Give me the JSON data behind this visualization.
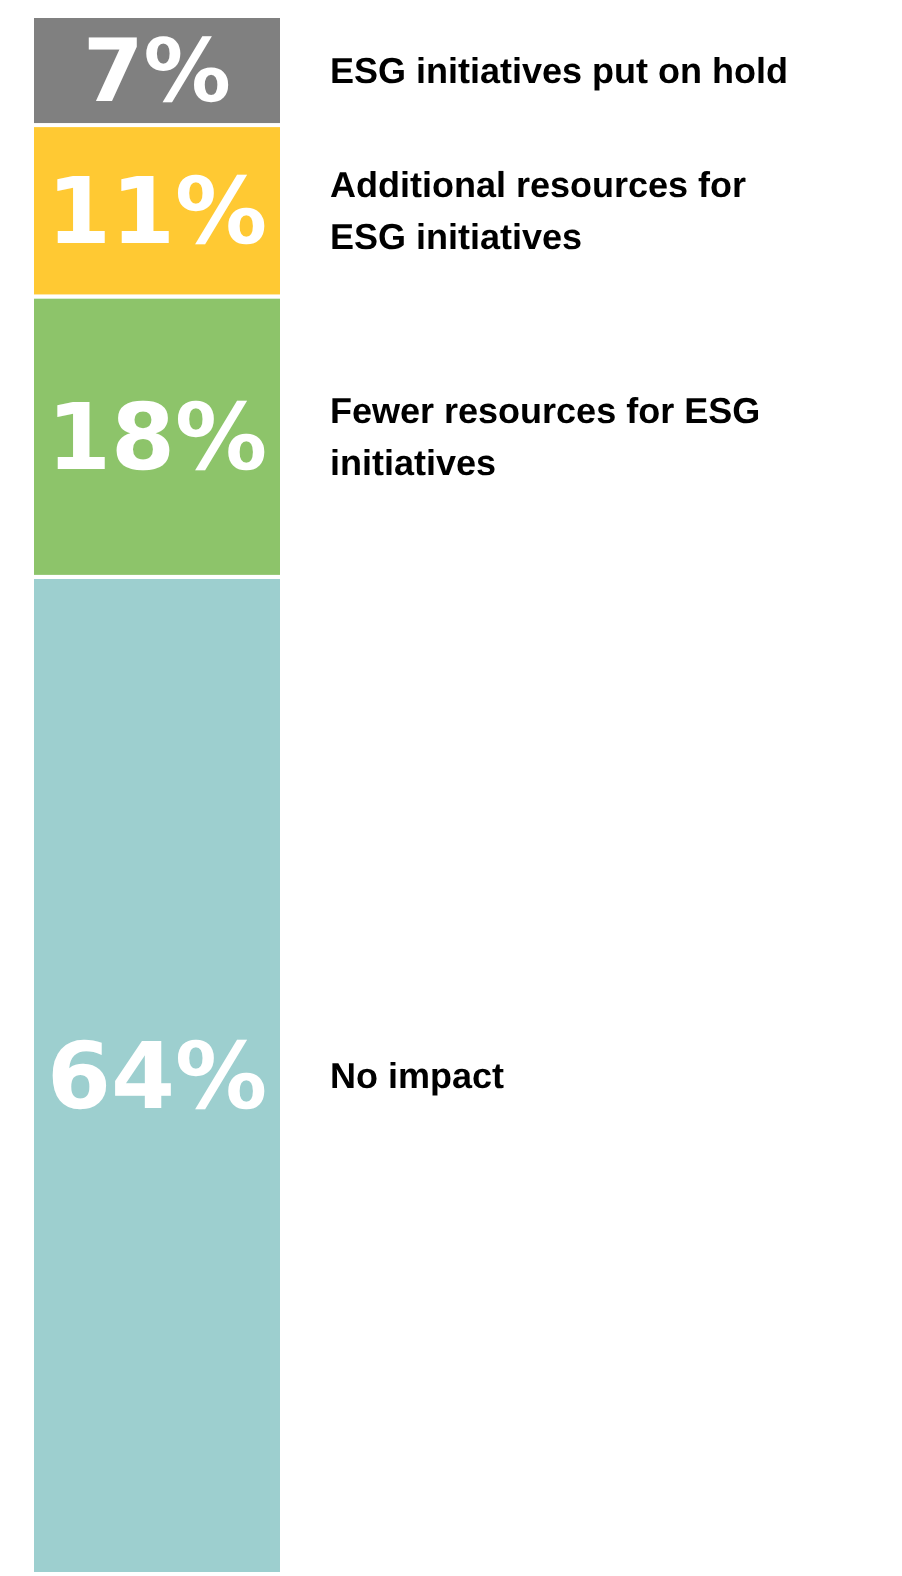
{
  "chart_data": {
    "type": "bar",
    "stacked": true,
    "categories": [
      null
    ],
    "series": [
      {
        "name": "No impact",
        "color": "#9dcfcf",
        "values": [
          64
        ],
        "value_labels": [
          "64%"
        ]
      },
      {
        "name": "Fewer resources for ESG initiatives",
        "color": "#8dc46a",
        "values": [
          18
        ],
        "value_labels": [
          "18%"
        ]
      },
      {
        "name": "Additional resources for ESG initiatives",
        "color": "#ffc933",
        "values": [
          11
        ],
        "value_labels": [
          "11%"
        ]
      },
      {
        "name": "ESG initiatives put on hold",
        "color": "#808080",
        "values": [
          7
        ],
        "value_labels": [
          "7%"
        ]
      }
    ]
  }
}
